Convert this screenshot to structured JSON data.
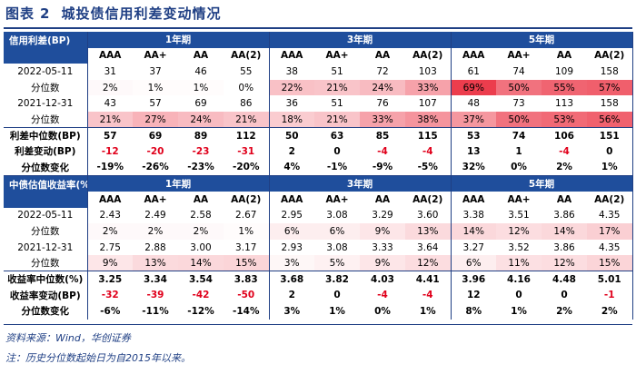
{
  "title": {
    "prefix": "图表",
    "number": "2",
    "text": "城投债信用利差变动情况"
  },
  "section1": {
    "header_label": "信用利差(BP)",
    "period_labels": [
      "1年期",
      "3年期",
      "5年期"
    ],
    "ratings": [
      "AAA",
      "AA+",
      "AA",
      "AA(2)",
      "AAA",
      "AA+",
      "AA",
      "AA(2)",
      "AAA",
      "AA+",
      "AA",
      "AA(2)"
    ],
    "rows": [
      {
        "label": "2022-05-11",
        "values": [
          "31",
          "37",
          "46",
          "55",
          "38",
          "51",
          "72",
          "103",
          "61",
          "74",
          "109",
          "158"
        ]
      },
      {
        "label": "分位数",
        "values": [
          "2%",
          "1%",
          "1%",
          "0%",
          "22%",
          "21%",
          "24%",
          "33%",
          "69%",
          "50%",
          "55%",
          "57%"
        ]
      },
      {
        "label": "2021-12-31",
        "values": [
          "43",
          "57",
          "69",
          "86",
          "36",
          "51",
          "76",
          "107",
          "48",
          "73",
          "113",
          "158"
        ]
      },
      {
        "label": "分位数",
        "values": [
          "21%",
          "27%",
          "24%",
          "21%",
          "18%",
          "21%",
          "33%",
          "38%",
          "37%",
          "50%",
          "53%",
          "56%"
        ]
      },
      {
        "label": "利差中位数(BP)",
        "values": [
          "57",
          "69",
          "89",
          "112",
          "50",
          "63",
          "85",
          "115",
          "53",
          "74",
          "106",
          "151"
        ]
      },
      {
        "label": "利差变动(BP)",
        "values": [
          "-12",
          "-20",
          "-23",
          "-31",
          "2",
          "0",
          "-4",
          "-4",
          "13",
          "1",
          "-4",
          "0"
        ]
      },
      {
        "label": "分位数变化",
        "values": [
          "-19%",
          "-26%",
          "-23%",
          "-20%",
          "4%",
          "-1%",
          "-9%",
          "-5%",
          "32%",
          "0%",
          "2%",
          "1%"
        ]
      }
    ]
  },
  "section2": {
    "header_label": "中债估值收益率(%)",
    "period_labels": [
      "1年期",
      "3年期",
      "5年期"
    ],
    "ratings": [
      "AAA",
      "AA+",
      "AA",
      "AA(2)",
      "AAA",
      "AA+",
      "AA",
      "AA(2)",
      "AAA",
      "AA+",
      "AA",
      "AA(2)"
    ],
    "rows": [
      {
        "label": "2022-05-11",
        "values": [
          "2.43",
          "2.49",
          "2.58",
          "2.67",
          "2.95",
          "3.08",
          "3.29",
          "3.60",
          "3.38",
          "3.51",
          "3.86",
          "4.35"
        ]
      },
      {
        "label": "分位数",
        "values": [
          "2%",
          "2%",
          "2%",
          "1%",
          "6%",
          "6%",
          "9%",
          "13%",
          "14%",
          "12%",
          "14%",
          "17%"
        ]
      },
      {
        "label": "2021-12-31",
        "values": [
          "2.75",
          "2.88",
          "3.00",
          "3.17",
          "2.93",
          "3.08",
          "3.33",
          "3.64",
          "3.27",
          "3.52",
          "3.86",
          "4.35"
        ]
      },
      {
        "label": "分位数",
        "values": [
          "9%",
          "13%",
          "14%",
          "15%",
          "3%",
          "5%",
          "9%",
          "12%",
          "6%",
          "11%",
          "12%",
          "15%"
        ]
      },
      {
        "label": "收益率中位数(%)",
        "values": [
          "3.25",
          "3.34",
          "3.54",
          "3.83",
          "3.68",
          "3.82",
          "4.03",
          "4.41",
          "3.96",
          "4.16",
          "4.48",
          "5.01"
        ]
      },
      {
        "label": "收益率变动(BP)",
        "values": [
          "-32",
          "-39",
          "-42",
          "-50",
          "2",
          "0",
          "-4",
          "-4",
          "12",
          "0",
          "0",
          "-1"
        ]
      },
      {
        "label": "分位数变化",
        "values": [
          "-6%",
          "-11%",
          "-12%",
          "-14%",
          "3%",
          "1%",
          "0%",
          "1%",
          "8%",
          "1%",
          "2%",
          "2%"
        ]
      }
    ]
  },
  "footer": {
    "source": "资料来源：Wind，华创证券",
    "note": "注：历史分位数起始日为自2015年以来。"
  },
  "colors": {
    "header_bg": "#1f4e9c",
    "accent": "#1f3f84",
    "negative": "#e0001b",
    "heat_base": "#ffffff",
    "heat_max": "#ec3a4a"
  }
}
